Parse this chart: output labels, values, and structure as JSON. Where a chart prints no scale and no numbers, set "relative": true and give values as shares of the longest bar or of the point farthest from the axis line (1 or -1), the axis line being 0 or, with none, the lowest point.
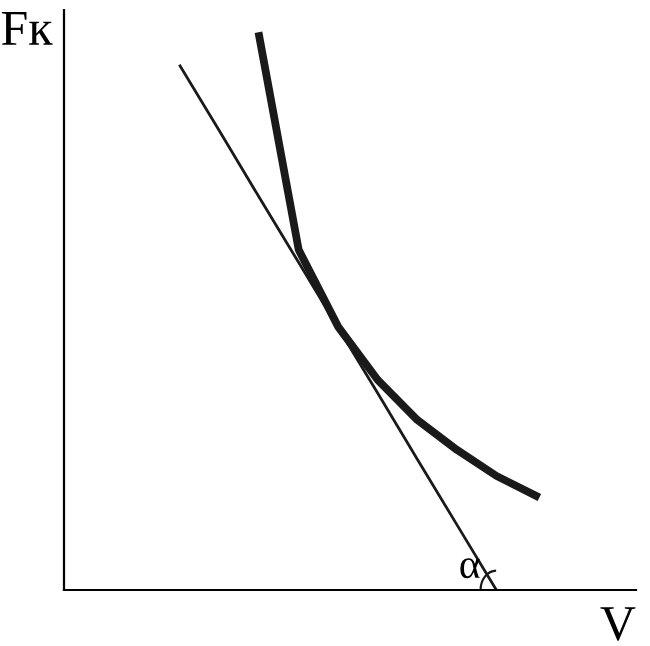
{
  "chart_data": {
    "type": "line",
    "relative": true,
    "xlabel": "V",
    "ylabel": "Fк",
    "legend": false,
    "marker": "none",
    "line_style": "solid",
    "categories": [
      null,
      null,
      null,
      null,
      null,
      null,
      null,
      null,
      null,
      null
    ],
    "series": [
      {
        "color": "#1a1a1a",
        "values": [
          null,
          null,
          1,
          0.614,
          0.475,
          0.379,
          0.307,
          0.253,
          0.206,
          0.17
        ]
      },
      {
        "color": "#1a1a1a",
        "values": [
          0.946,
          0.828,
          0.709,
          0.591,
          0.473,
          0.355,
          0.236,
          0.118,
          0,
          null
        ]
      }
    ],
    "annotations": [
      "α"
    ]
  }
}
